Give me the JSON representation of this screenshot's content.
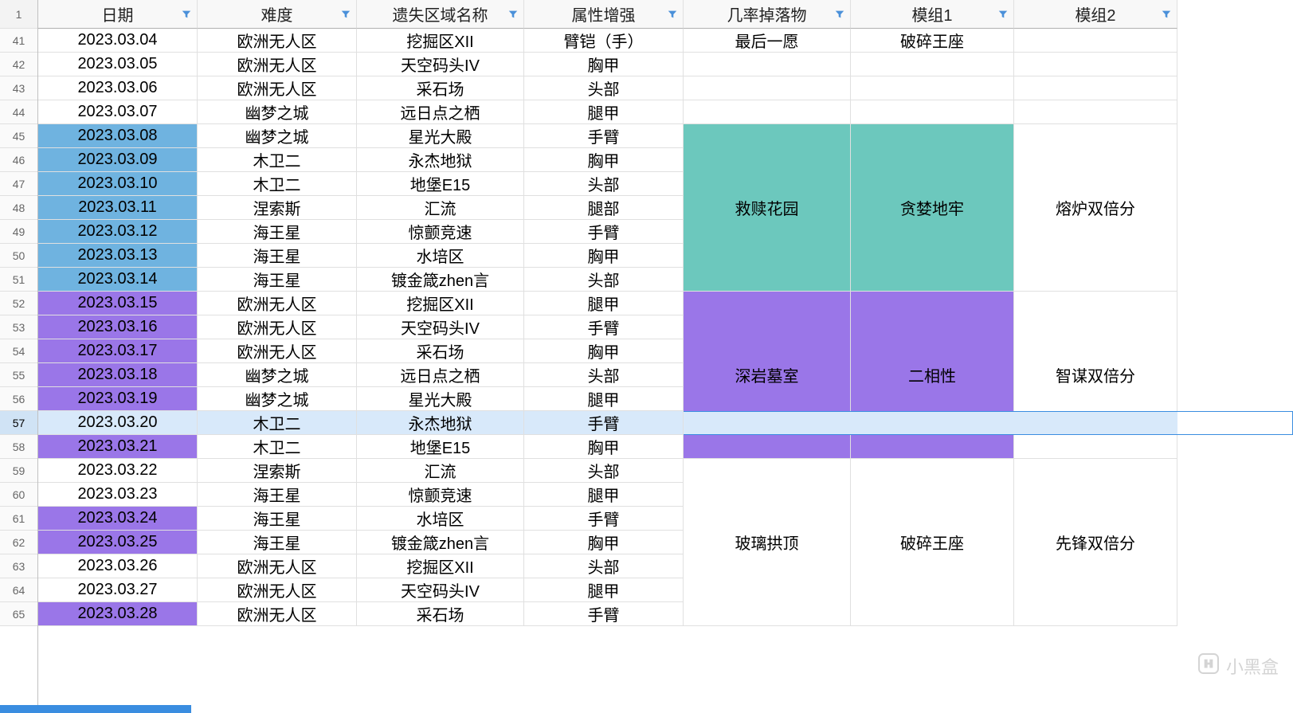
{
  "colors": {
    "teal": "#6cc8bd",
    "blue": "#6fb3e0",
    "purple": "#9a76e8",
    "selected": "#d8e9fa",
    "header_bg": "#f8f8f8",
    "border": "#e0e0e0"
  },
  "headers": [
    "日期",
    "难度",
    "遗失区域名称",
    "属性增强",
    "几率掉落物",
    "模组1",
    "模组2"
  ],
  "selected_row_index": 16,
  "watermark_text": "小黑盒",
  "rows": [
    {
      "n": "41",
      "d": "2023.03.04",
      "diff": "欧洲无人区",
      "zone": "挖掘区XII",
      "attr": "臂铠（手）",
      "drop": "最后一愿",
      "m1": "破碎王座",
      "m2": "",
      "date_bg": ""
    },
    {
      "n": "42",
      "d": "2023.03.05",
      "diff": "欧洲无人区",
      "zone": "天空码头IV",
      "attr": "胸甲",
      "drop": "",
      "m1": "",
      "m2": "",
      "date_bg": ""
    },
    {
      "n": "43",
      "d": "2023.03.06",
      "diff": "欧洲无人区",
      "zone": "采石场",
      "attr": "头部",
      "drop": "",
      "m1": "",
      "m2": "",
      "date_bg": ""
    },
    {
      "n": "44",
      "d": "2023.03.07",
      "diff": "幽梦之城",
      "zone": "远日点之栖",
      "attr": "腿甲",
      "drop": "",
      "m1": "",
      "m2": "",
      "date_bg": ""
    },
    {
      "n": "45",
      "d": "2023.03.08",
      "diff": "幽梦之城",
      "zone": "星光大殿",
      "attr": "手臂",
      "drop": "救赎花园",
      "m1": "贪婪地牢",
      "m2": "熔炉双倍分",
      "date_bg": "blue",
      "group": "teal",
      "group_start": true
    },
    {
      "n": "46",
      "d": "2023.03.09",
      "diff": "木卫二",
      "zone": "永杰地狱",
      "attr": "胸甲",
      "date_bg": "blue",
      "group": "teal"
    },
    {
      "n": "47",
      "d": "2023.03.10",
      "diff": "木卫二",
      "zone": "地堡E15",
      "attr": "头部",
      "date_bg": "blue",
      "group": "teal"
    },
    {
      "n": "48",
      "d": "2023.03.11",
      "diff": "涅索斯",
      "zone": "汇流",
      "attr": "腿部",
      "date_bg": "blue",
      "group": "teal"
    },
    {
      "n": "49",
      "d": "2023.03.12",
      "diff": "海王星",
      "zone": "惊颤竞速",
      "attr": "手臂",
      "date_bg": "blue",
      "group": "teal"
    },
    {
      "n": "50",
      "d": "2023.03.13",
      "diff": "海王星",
      "zone": "水培区",
      "attr": "胸甲",
      "date_bg": "blue",
      "group": "teal"
    },
    {
      "n": "51",
      "d": "2023.03.14",
      "diff": "海王星",
      "zone": "镀金箴zhen言",
      "attr": "头部",
      "date_bg": "blue",
      "group": "teal",
      "group_end": true
    },
    {
      "n": "52",
      "d": "2023.03.15",
      "diff": "欧洲无人区",
      "zone": "挖掘区XII",
      "attr": "腿甲",
      "drop": "深岩墓室",
      "m1": "二相性",
      "m2": "智谋双倍分",
      "date_bg": "purple",
      "group": "purple",
      "group_start": true
    },
    {
      "n": "53",
      "d": "2023.03.16",
      "diff": "欧洲无人区",
      "zone": "天空码头IV",
      "attr": "手臂",
      "date_bg": "purple",
      "group": "purple"
    },
    {
      "n": "54",
      "d": "2023.03.17",
      "diff": "欧洲无人区",
      "zone": "采石场",
      "attr": "胸甲",
      "date_bg": "purple",
      "group": "purple"
    },
    {
      "n": "55",
      "d": "2023.03.18",
      "diff": "幽梦之城",
      "zone": "远日点之栖",
      "attr": "头部",
      "date_bg": "purple",
      "group": "purple"
    },
    {
      "n": "56",
      "d": "2023.03.19",
      "diff": "幽梦之城",
      "zone": "星光大殿",
      "attr": "腿甲",
      "date_bg": "purple",
      "group": "purple"
    },
    {
      "n": "57",
      "d": "2023.03.20",
      "diff": "木卫二",
      "zone": "永杰地狱",
      "attr": "手臂",
      "date_bg": "purple",
      "group": "purple",
      "selected": true
    },
    {
      "n": "58",
      "d": "2023.03.21",
      "diff": "木卫二",
      "zone": "地堡E15",
      "attr": "胸甲",
      "date_bg": "purple",
      "group": "purple",
      "group_end": true
    },
    {
      "n": "59",
      "d": "2023.03.22",
      "diff": "涅索斯",
      "zone": "汇流",
      "attr": "头部",
      "drop": "玻璃拱顶",
      "m1": "破碎王座",
      "m2": "先锋双倍分",
      "date_bg": "",
      "group": "white",
      "group_start": true
    },
    {
      "n": "60",
      "d": "2023.03.23",
      "diff": "海王星",
      "zone": "惊颤竞速",
      "attr": "腿甲",
      "date_bg": "",
      "group": "white"
    },
    {
      "n": "61",
      "d": "2023.03.24",
      "diff": "海王星",
      "zone": "水培区",
      "attr": "手臂",
      "date_bg": "purple",
      "group": "white"
    },
    {
      "n": "62",
      "d": "2023.03.25",
      "diff": "海王星",
      "zone": "镀金箴zhen言",
      "attr": "胸甲",
      "date_bg": "purple",
      "group": "white"
    },
    {
      "n": "63",
      "d": "2023.03.26",
      "diff": "欧洲无人区",
      "zone": "挖掘区XII",
      "attr": "头部",
      "date_bg": "",
      "group": "white"
    },
    {
      "n": "64",
      "d": "2023.03.27",
      "diff": "欧洲无人区",
      "zone": "天空码头IV",
      "attr": "腿甲",
      "date_bg": "",
      "group": "white"
    },
    {
      "n": "65",
      "d": "2023.03.28",
      "diff": "欧洲无人区",
      "zone": "采石场",
      "attr": "手臂",
      "date_bg": "purple",
      "group": "white",
      "group_end": true
    }
  ]
}
